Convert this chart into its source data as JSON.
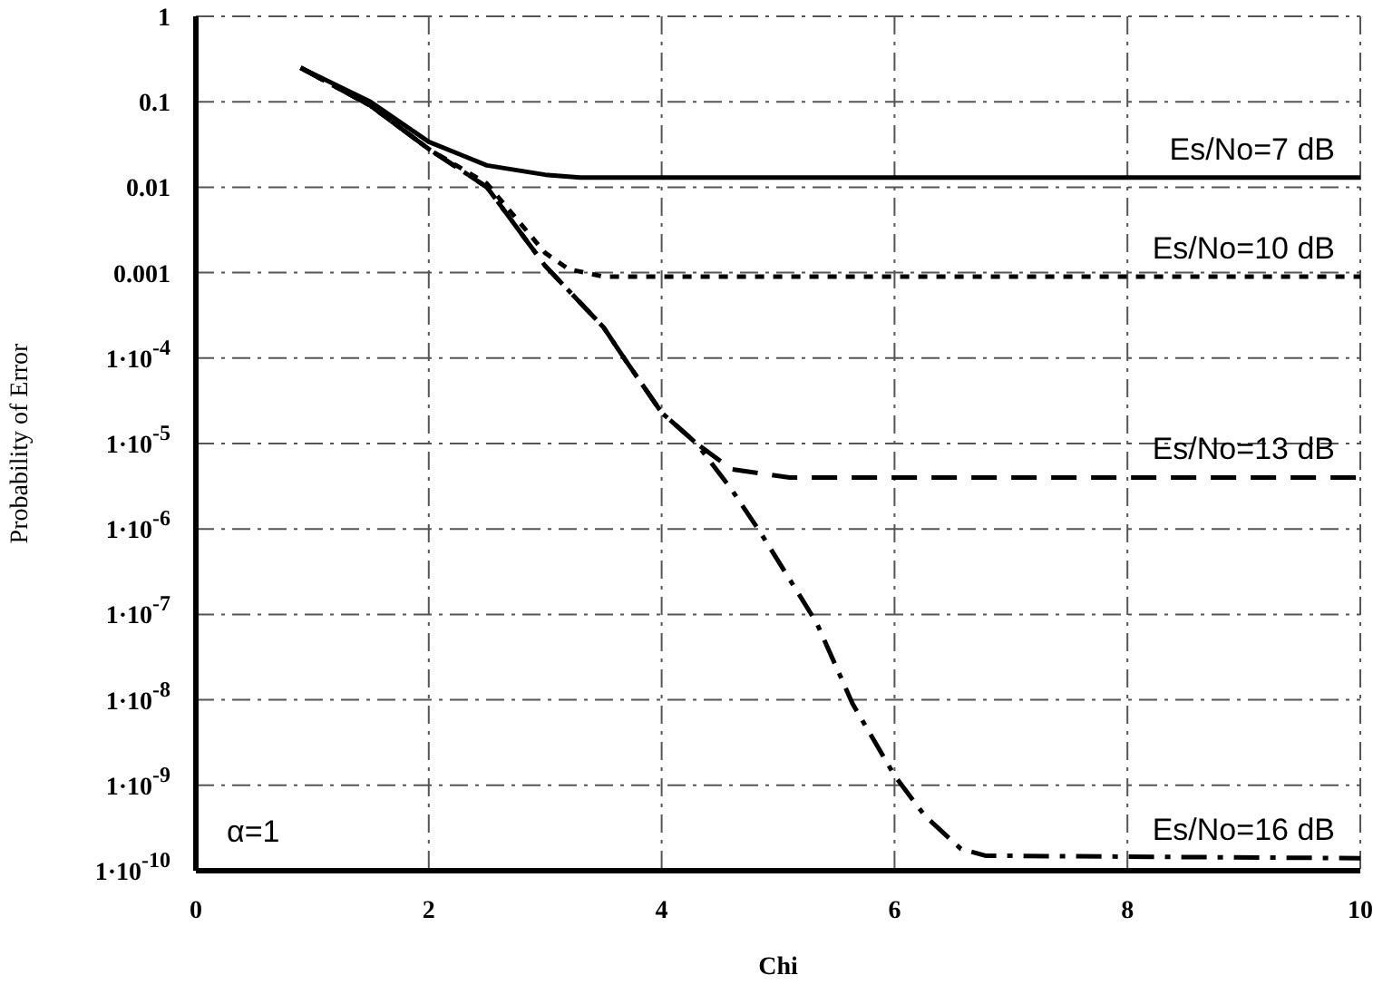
{
  "chart_data": {
    "type": "line",
    "xlabel": "Chi",
    "ylabel": "Probability of Error",
    "annotations": [
      "α=1"
    ],
    "log": "y",
    "grid": true,
    "xlim": [
      0,
      10
    ],
    "xticks": [
      0,
      2,
      4,
      6,
      8,
      10
    ],
    "ylim": [
      1e-10,
      1
    ],
    "yticks": [
      {
        "value": 1e-10,
        "label": "1·10$^{-10}$"
      },
      {
        "value": 1e-09,
        "label": "1·10$^{-9}$"
      },
      {
        "value": 1e-08,
        "label": "1·10$^{-8}$"
      },
      {
        "value": 1e-07,
        "label": "1·10$^{-7}$"
      },
      {
        "value": 1e-06,
        "label": "1·10$^{-6}$"
      },
      {
        "value": 1e-05,
        "label": "1·10$^{-5}$"
      },
      {
        "value": 0.0001,
        "label": "1·10$^{-4}$"
      },
      0.001,
      0.01,
      0.1,
      1
    ],
    "series": [
      {
        "name": "Es/No=7 dB",
        "color": "#000000",
        "line_style": "solid",
        "x": [
          0.9,
          1.5,
          2,
          2.5,
          3,
          3.3,
          10
        ],
        "values": [
          0.25,
          0.1,
          0.034,
          0.018,
          0.014,
          0.013,
          0.013
        ]
      },
      {
        "name": "Es/No=10 dB",
        "color": "#000000",
        "line_style": "dotted",
        "x": [
          0.9,
          1.5,
          2,
          2.5,
          3,
          3.2,
          3.5,
          10
        ],
        "values": [
          0.25,
          0.09,
          0.028,
          0.011,
          0.0017,
          0.0011,
          0.0009,
          0.0009
        ]
      },
      {
        "name": "Es/No=13 dB",
        "color": "#000000",
        "line_style": "dashed",
        "x": [
          0.9,
          1.5,
          2,
          2.5,
          3,
          3.5,
          3.7,
          4,
          4.3,
          4.6,
          5.1,
          10
        ],
        "values": [
          0.25,
          0.09,
          0.028,
          0.01,
          0.0012,
          0.00023,
          9e-05,
          2.3e-05,
          1e-05,
          5e-06,
          4e-06,
          4e-06
        ]
      },
      {
        "name": "Es/No=16 dB",
        "color": "#000000",
        "line_style": "dashdot",
        "x": [
          0.9,
          1.5,
          2,
          2.5,
          3,
          3.5,
          3.7,
          4,
          4.3,
          4.6,
          4.85,
          5.17,
          5.33,
          5.64,
          6,
          6.26,
          6.57,
          6.78,
          10
        ],
        "values": [
          0.25,
          0.09,
          0.028,
          0.01,
          0.0012,
          0.00023,
          9e-05,
          2.3e-05,
          1e-05,
          2.9e-06,
          9e-07,
          1.8e-07,
          8e-08,
          9e-09,
          1.3e-09,
          4.4e-10,
          1.8e-10,
          1.5e-10,
          1.4e-10
        ]
      }
    ]
  }
}
